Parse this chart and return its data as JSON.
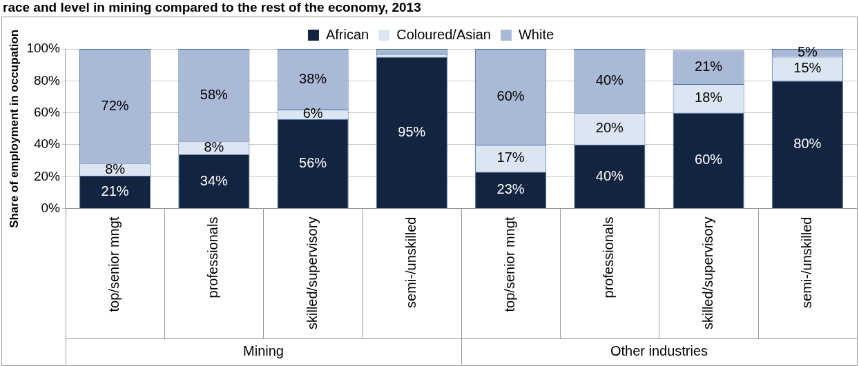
{
  "chart_data": {
    "type": "bar",
    "stacked": true,
    "title": "race and level in mining compared to the rest of the economy, 2013",
    "ylabel": "Share of employment in occupation",
    "categories": [
      "top/senior mngt",
      "professionals",
      "skilled/supervisory",
      "semi-/unskilled",
      "top/senior mngt",
      "professionals",
      "skilled/supervisory",
      "semi-/unskilled"
    ],
    "series": [
      {
        "name": "African",
        "color": "#12243f",
        "values": [
          20.6,
          34,
          56,
          95,
          23,
          40,
          60,
          80
        ],
        "value_labels": [
          "21%",
          "34%",
          "56%",
          "95%",
          "23%",
          "40%",
          "60%",
          "80%"
        ]
      },
      {
        "name": "Coloured/Asian",
        "color": "#dce6f2",
        "values": [
          7.6,
          8,
          6,
          2,
          17,
          20,
          18,
          15
        ],
        "value_labels": [
          "8%",
          "8%",
          "6%",
          null,
          "17%",
          "20%",
          "18%",
          "15%"
        ]
      },
      {
        "name": "White",
        "color": "#a9b9d6",
        "values": [
          71.8,
          58,
          38,
          3,
          60,
          40,
          21,
          5
        ],
        "value_labels": [
          "72%",
          "58%",
          "38%",
          null,
          "60%",
          "40%",
          "21%",
          "5%"
        ]
      }
    ],
    "ylim": [
      0,
      100
    ],
    "yticks": [
      {
        "value": 0,
        "label": "0%"
      },
      {
        "value": 20,
        "label": "20%"
      },
      {
        "value": 40,
        "label": "40%"
      },
      {
        "value": 60,
        "label": "60%"
      },
      {
        "value": 80,
        "label": "80%"
      },
      {
        "value": 100,
        "label": "100%"
      }
    ],
    "grid": "y",
    "legend": "top",
    "annotations": [
      "Mining",
      "Other industries"
    ]
  }
}
